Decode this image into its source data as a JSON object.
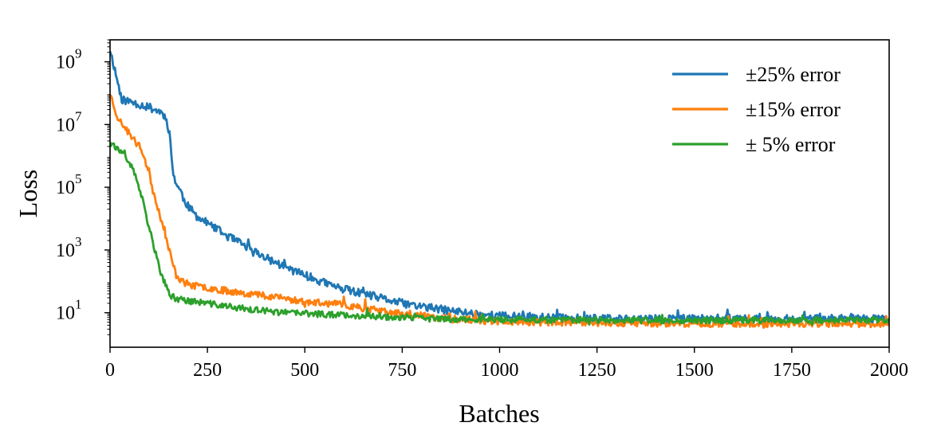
{
  "chart_data": {
    "type": "line",
    "title": "",
    "xlabel": "Batches",
    "ylabel": "Loss",
    "x_scale": "linear",
    "y_scale": "log",
    "xlim": [
      0,
      2000
    ],
    "ylim_exponent": [
      -0.1,
      9.7
    ],
    "x_ticks": [
      {
        "value": 0,
        "label": "0"
      },
      {
        "value": 250,
        "label": "250"
      },
      {
        "value": 500,
        "label": "500"
      },
      {
        "value": 750,
        "label": "750"
      },
      {
        "value": 1000,
        "label": "1000"
      },
      {
        "value": 1250,
        "label": "1250"
      },
      {
        "value": 1500,
        "label": "1500"
      },
      {
        "value": 1750,
        "label": "1750"
      },
      {
        "value": 2000,
        "label": "2000"
      }
    ],
    "y_ticks": [
      {
        "exponent": 1,
        "base": "10",
        "exp_label": "1"
      },
      {
        "exponent": 3,
        "base": "10",
        "exp_label": "3"
      },
      {
        "exponent": 5,
        "base": "10",
        "exp_label": "5"
      },
      {
        "exponent": 7,
        "base": "10",
        "exp_label": "7"
      },
      {
        "exponent": 9,
        "base": "10",
        "exp_label": "9"
      }
    ],
    "legend_position": "top-right",
    "series": [
      {
        "name": "±25% error",
        "color": "#1f77b4",
        "noise": 0.13,
        "seed": 11,
        "x": [
          0,
          30,
          60,
          100,
          130,
          145,
          155,
          160,
          170,
          180,
          190,
          200,
          220,
          250,
          300,
          350,
          400,
          450,
          500,
          550,
          600,
          650,
          700,
          750,
          800,
          850,
          900,
          950,
          1000,
          1100,
          1200,
          1300,
          1400,
          1500,
          1600,
          1700,
          1800,
          1900,
          2000
        ],
        "log10_y": [
          9.4,
          7.8,
          7.7,
          7.55,
          7.4,
          7.2,
          6.5,
          5.6,
          5.1,
          4.9,
          4.6,
          4.4,
          4.1,
          3.85,
          3.45,
          3.1,
          2.75,
          2.45,
          2.2,
          1.95,
          1.75,
          1.6,
          1.45,
          1.3,
          1.2,
          1.1,
          1.02,
          0.95,
          0.9,
          0.85,
          0.82,
          0.8,
          0.8,
          0.8,
          0.82,
          0.8,
          0.8,
          0.8,
          0.8
        ]
      },
      {
        "name": "±15% error",
        "color": "#ff7f0e",
        "noise": 0.11,
        "seed": 23,
        "x": [
          0,
          20,
          50,
          80,
          100,
          110,
          120,
          130,
          140,
          150,
          160,
          170,
          190,
          220,
          250,
          300,
          350,
          400,
          450,
          500,
          550,
          600,
          650,
          700,
          750,
          800,
          850,
          900,
          1000,
          1100,
          1200,
          1300,
          1400,
          1500,
          1600,
          1700,
          1800,
          1900,
          2000
        ],
        "log10_y": [
          8.0,
          7.2,
          6.7,
          6.2,
          5.5,
          4.9,
          4.5,
          4.0,
          3.5,
          3.1,
          2.6,
          2.2,
          1.95,
          1.85,
          1.8,
          1.7,
          1.62,
          1.55,
          1.45,
          1.35,
          1.3,
          1.25,
          1.15,
          1.05,
          0.95,
          0.9,
          0.82,
          0.78,
          0.72,
          0.7,
          0.68,
          0.67,
          0.66,
          0.65,
          0.66,
          0.65,
          0.65,
          0.65,
          0.65
        ]
      },
      {
        "name": "±  5% error",
        "color": "#2ca02c",
        "noise": 0.1,
        "seed": 37,
        "x": [
          0,
          20,
          50,
          70,
          85,
          95,
          105,
          115,
          125,
          135,
          145,
          155,
          170,
          200,
          250,
          300,
          350,
          400,
          450,
          500,
          550,
          600,
          650,
          700,
          750,
          800,
          850,
          900,
          1000,
          1100,
          1200,
          1300,
          1400,
          1500,
          1600,
          1700,
          1800,
          1900,
          2000
        ],
        "log10_y": [
          6.5,
          6.2,
          5.8,
          5.2,
          4.5,
          3.9,
          3.5,
          3.0,
          2.5,
          2.1,
          1.8,
          1.55,
          1.45,
          1.38,
          1.3,
          1.2,
          1.12,
          1.05,
          1.0,
          0.98,
          0.95,
          0.93,
          0.9,
          0.87,
          0.85,
          0.82,
          0.8,
          0.79,
          0.78,
          0.77,
          0.77,
          0.76,
          0.76,
          0.76,
          0.76,
          0.76,
          0.76,
          0.76,
          0.76
        ]
      }
    ]
  }
}
